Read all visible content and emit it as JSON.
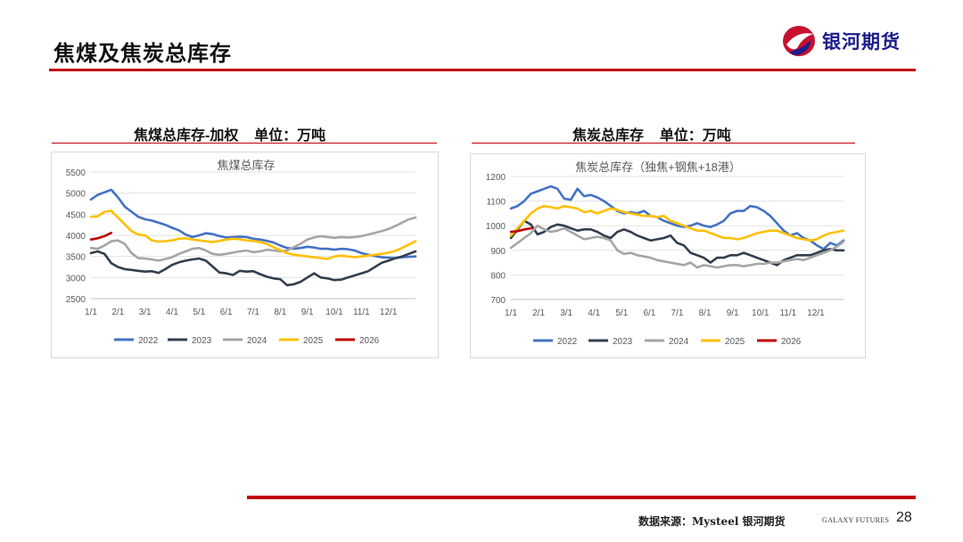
{
  "page": {
    "title": "焦煤及焦炭总库存",
    "logo_text": "银河期货",
    "source": "数据来源：Mysteel 银河期货",
    "brand_small": "GALAXY FUTURES",
    "page_number": "28"
  },
  "sections": [
    {
      "title": "焦煤总库存-加权    单位：万吨"
    },
    {
      "title": "焦炭总库存    单位：万吨"
    }
  ],
  "colors": {
    "2022": "#4472c4",
    "2023": "#323f4f",
    "2024": "#a5a5a5",
    "2025": "#ffc000",
    "2026": "#c00000",
    "accent": "#c0000a"
  },
  "chart_data": [
    {
      "type": "line",
      "title": "焦煤总库存",
      "xlabel": "",
      "ylabel": "",
      "ylim": [
        2500,
        5500
      ],
      "yticks": [
        "2500",
        "3000",
        "3500",
        "4000",
        "4500",
        "5000",
        "5500"
      ],
      "xtick_labels": [
        "1/1",
        "2/1",
        "3/1",
        "4/1",
        "5/1",
        "6/1",
        "7/1",
        "8/1",
        "9/1",
        "10/1",
        "11/1",
        "12/1"
      ],
      "x_unit": "week",
      "x_max": 52,
      "grid": true,
      "legend": [
        "2022",
        "2023",
        "2024",
        "2025",
        "2026"
      ],
      "series": [
        {
          "name": "2022",
          "values": [
            4850,
            4960,
            5020,
            5080,
            4900,
            4680,
            4560,
            4440,
            4380,
            4350,
            4300,
            4250,
            4180,
            4120,
            4020,
            3960,
            4000,
            4050,
            4030,
            3980,
            3950,
            3960,
            3970,
            3960,
            3920,
            3900,
            3870,
            3830,
            3760,
            3700,
            3680,
            3700,
            3730,
            3710,
            3680,
            3680,
            3660,
            3680,
            3670,
            3640,
            3580,
            3540,
            3510,
            3480,
            3470,
            3460,
            3480,
            3490,
            3500
          ]
        },
        {
          "name": "2023",
          "values": [
            3580,
            3620,
            3560,
            3340,
            3250,
            3200,
            3180,
            3160,
            3140,
            3150,
            3110,
            3200,
            3300,
            3360,
            3400,
            3430,
            3450,
            3400,
            3260,
            3120,
            3100,
            3060,
            3160,
            3140,
            3150,
            3080,
            3020,
            2980,
            2960,
            2820,
            2840,
            2900,
            3000,
            3100,
            3000,
            2980,
            2940,
            2950,
            3000,
            3050,
            3100,
            3150,
            3250,
            3350,
            3400,
            3460,
            3500,
            3560,
            3620
          ]
        },
        {
          "name": "2024",
          "values": [
            3700,
            3680,
            3760,
            3860,
            3880,
            3800,
            3580,
            3460,
            3450,
            3430,
            3400,
            3440,
            3480,
            3560,
            3620,
            3680,
            3700,
            3640,
            3560,
            3540,
            3560,
            3590,
            3620,
            3640,
            3600,
            3620,
            3660,
            3640,
            3620,
            3640,
            3720,
            3800,
            3900,
            3950,
            3980,
            3960,
            3940,
            3960,
            3950,
            3960,
            3980,
            4020,
            4060,
            4100,
            4150,
            4220,
            4300,
            4380,
            4420
          ]
        },
        {
          "name": "2025",
          "values": [
            4440,
            4450,
            4560,
            4580,
            4420,
            4260,
            4100,
            4020,
            4000,
            3880,
            3850,
            3860,
            3880,
            3920,
            3930,
            3900,
            3880,
            3860,
            3840,
            3870,
            3900,
            3920,
            3910,
            3880,
            3870,
            3840,
            3800,
            3720,
            3650,
            3580,
            3540,
            3520,
            3500,
            3480,
            3460,
            3440,
            3500,
            3520,
            3500,
            3480,
            3500,
            3520,
            3540,
            3560,
            3590,
            3630,
            3700,
            3780,
            3860
          ]
        },
        {
          "name": "2026",
          "values": [
            3900,
            3930,
            3980,
            4060
          ]
        }
      ]
    },
    {
      "type": "line",
      "title": "焦炭总库存（独焦+钢焦+18港）",
      "xlabel": "",
      "ylabel": "",
      "ylim": [
        700,
        1200
      ],
      "yticks": [
        "700",
        "800",
        "900",
        "1000",
        "1100",
        "1200"
      ],
      "xtick_labels": [
        "1/1",
        "2/1",
        "3/1",
        "4/1",
        "5/1",
        "6/1",
        "7/1",
        "8/1",
        "9/1",
        "10/1",
        "11/1",
        "12/1"
      ],
      "x_unit": "week",
      "x_max": 52,
      "grid": true,
      "legend": [
        "2022",
        "2023",
        "2024",
        "2025",
        "2026"
      ],
      "series": [
        {
          "name": "2022",
          "values": [
            1070,
            1080,
            1100,
            1130,
            1140,
            1150,
            1160,
            1150,
            1110,
            1105,
            1150,
            1120,
            1125,
            1115,
            1100,
            1080,
            1060,
            1050,
            1055,
            1050,
            1060,
            1040,
            1035,
            1020,
            1010,
            1000,
            995,
            1000,
            1010,
            1000,
            995,
            1005,
            1020,
            1050,
            1060,
            1060,
            1080,
            1075,
            1060,
            1040,
            1010,
            980,
            960,
            970,
            950,
            940,
            920,
            905,
            930,
            920,
            940
          ]
        },
        {
          "name": "2023",
          "values": [
            950,
            985,
            1020,
            1005,
            965,
            975,
            995,
            1005,
            1000,
            990,
            980,
            985,
            985,
            975,
            960,
            950,
            975,
            985,
            975,
            960,
            950,
            940,
            945,
            950,
            960,
            930,
            920,
            890,
            880,
            870,
            850,
            870,
            870,
            880,
            880,
            890,
            880,
            870,
            860,
            850,
            840,
            860,
            870,
            880,
            880,
            880,
            890,
            900,
            905,
            900,
            900
          ]
        },
        {
          "name": "2024",
          "values": [
            910,
            930,
            950,
            970,
            1000,
            985,
            975,
            980,
            990,
            975,
            960,
            945,
            950,
            955,
            950,
            940,
            900,
            885,
            890,
            880,
            875,
            870,
            860,
            855,
            850,
            845,
            840,
            850,
            830,
            840,
            835,
            830,
            835,
            840,
            840,
            835,
            840,
            845,
            845,
            850,
            850,
            855,
            860,
            865,
            860,
            870,
            880,
            890,
            900,
            915,
            935
          ]
        },
        {
          "name": "2025",
          "values": [
            960,
            990,
            1020,
            1050,
            1070,
            1080,
            1075,
            1070,
            1080,
            1075,
            1070,
            1055,
            1060,
            1050,
            1060,
            1070,
            1065,
            1055,
            1050,
            1045,
            1040,
            1040,
            1035,
            1040,
            1020,
            1010,
            1000,
            990,
            980,
            980,
            970,
            960,
            950,
            950,
            945,
            950,
            960,
            970,
            975,
            980,
            980,
            970,
            960,
            950,
            945,
            940,
            945,
            960,
            970,
            975,
            980
          ]
        },
        {
          "name": "2026",
          "values": [
            975,
            978,
            985,
            990
          ]
        }
      ]
    }
  ]
}
